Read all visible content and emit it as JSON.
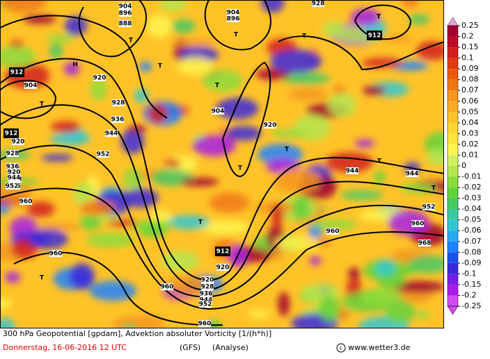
{
  "map": {
    "labels": [
      "904",
      "896",
      "888",
      "928",
      "912",
      "H",
      "920",
      "928",
      "T",
      "T",
      "T",
      "T",
      "T",
      "904",
      "896",
      "T",
      "912",
      "920",
      "928",
      "936",
      "904",
      "912",
      "920",
      "928",
      "936",
      "944",
      "952",
      "920",
      "936",
      "944",
      "952",
      "960",
      "960",
      "T",
      "T",
      "920",
      "T",
      "904",
      "T",
      "T",
      "944",
      "944",
      "T",
      "952",
      "960",
      "968",
      "T",
      "912",
      "920",
      "928",
      "936",
      "944",
      "952",
      "960",
      "960",
      "960",
      "T"
    ]
  },
  "legend": {
    "levels": [
      {
        "label": "0.25",
        "color": "#f0a0d8"
      },
      {
        "label": "0.2",
        "color": "#a00032"
      },
      {
        "label": "0.15",
        "color": "#be0a28"
      },
      {
        "label": "0.1",
        "color": "#d21e1e"
      },
      {
        "label": "0.09",
        "color": "#e13c14"
      },
      {
        "label": "0.08",
        "color": "#eb5a0a"
      },
      {
        "label": "0.07",
        "color": "#f07814"
      },
      {
        "label": "0.06",
        "color": "#f5961e"
      },
      {
        "label": "0.05",
        "color": "#faaa28"
      },
      {
        "label": "0.04",
        "color": "#ffc328"
      },
      {
        "label": "0.03",
        "color": "#ffd732"
      },
      {
        "label": "0.02",
        "color": "#ffe63c"
      },
      {
        "label": "0.01",
        "color": "#fff550"
      },
      {
        "label": "0",
        "color": "#d2f064"
      },
      {
        "label": "-0.01",
        "color": "#b4e650"
      },
      {
        "label": "-0.02",
        "color": "#8cdc3c"
      },
      {
        "label": "-0.03",
        "color": "#64d23c"
      },
      {
        "label": "-0.04",
        "color": "#46c864"
      },
      {
        "label": "-0.05",
        "color": "#3cc8a0"
      },
      {
        "label": "-0.06",
        "color": "#32c8d2"
      },
      {
        "label": "-0.07",
        "color": "#28aaf0"
      },
      {
        "label": "-0.08",
        "color": "#1e82ff"
      },
      {
        "label": "-0.09",
        "color": "#1e50f0"
      },
      {
        "label": "-0.1",
        "color": "#3c28dc"
      },
      {
        "label": "-0.15",
        "color": "#7a1ee6"
      },
      {
        "label": "-0.2",
        "color": "#a81ee6"
      },
      {
        "label": "-0.25",
        "color": "#d24bf0"
      }
    ]
  },
  "footer": {
    "line1": "300 hPa Geopotential [gpdam], Advektion absoluter Vorticity [1/(h*h)]",
    "date": "Donnerstag, 16-06-2016  12 UTC",
    "model": "(GFS)",
    "run": "(Analyse)",
    "site": "www.wetter3.de"
  }
}
